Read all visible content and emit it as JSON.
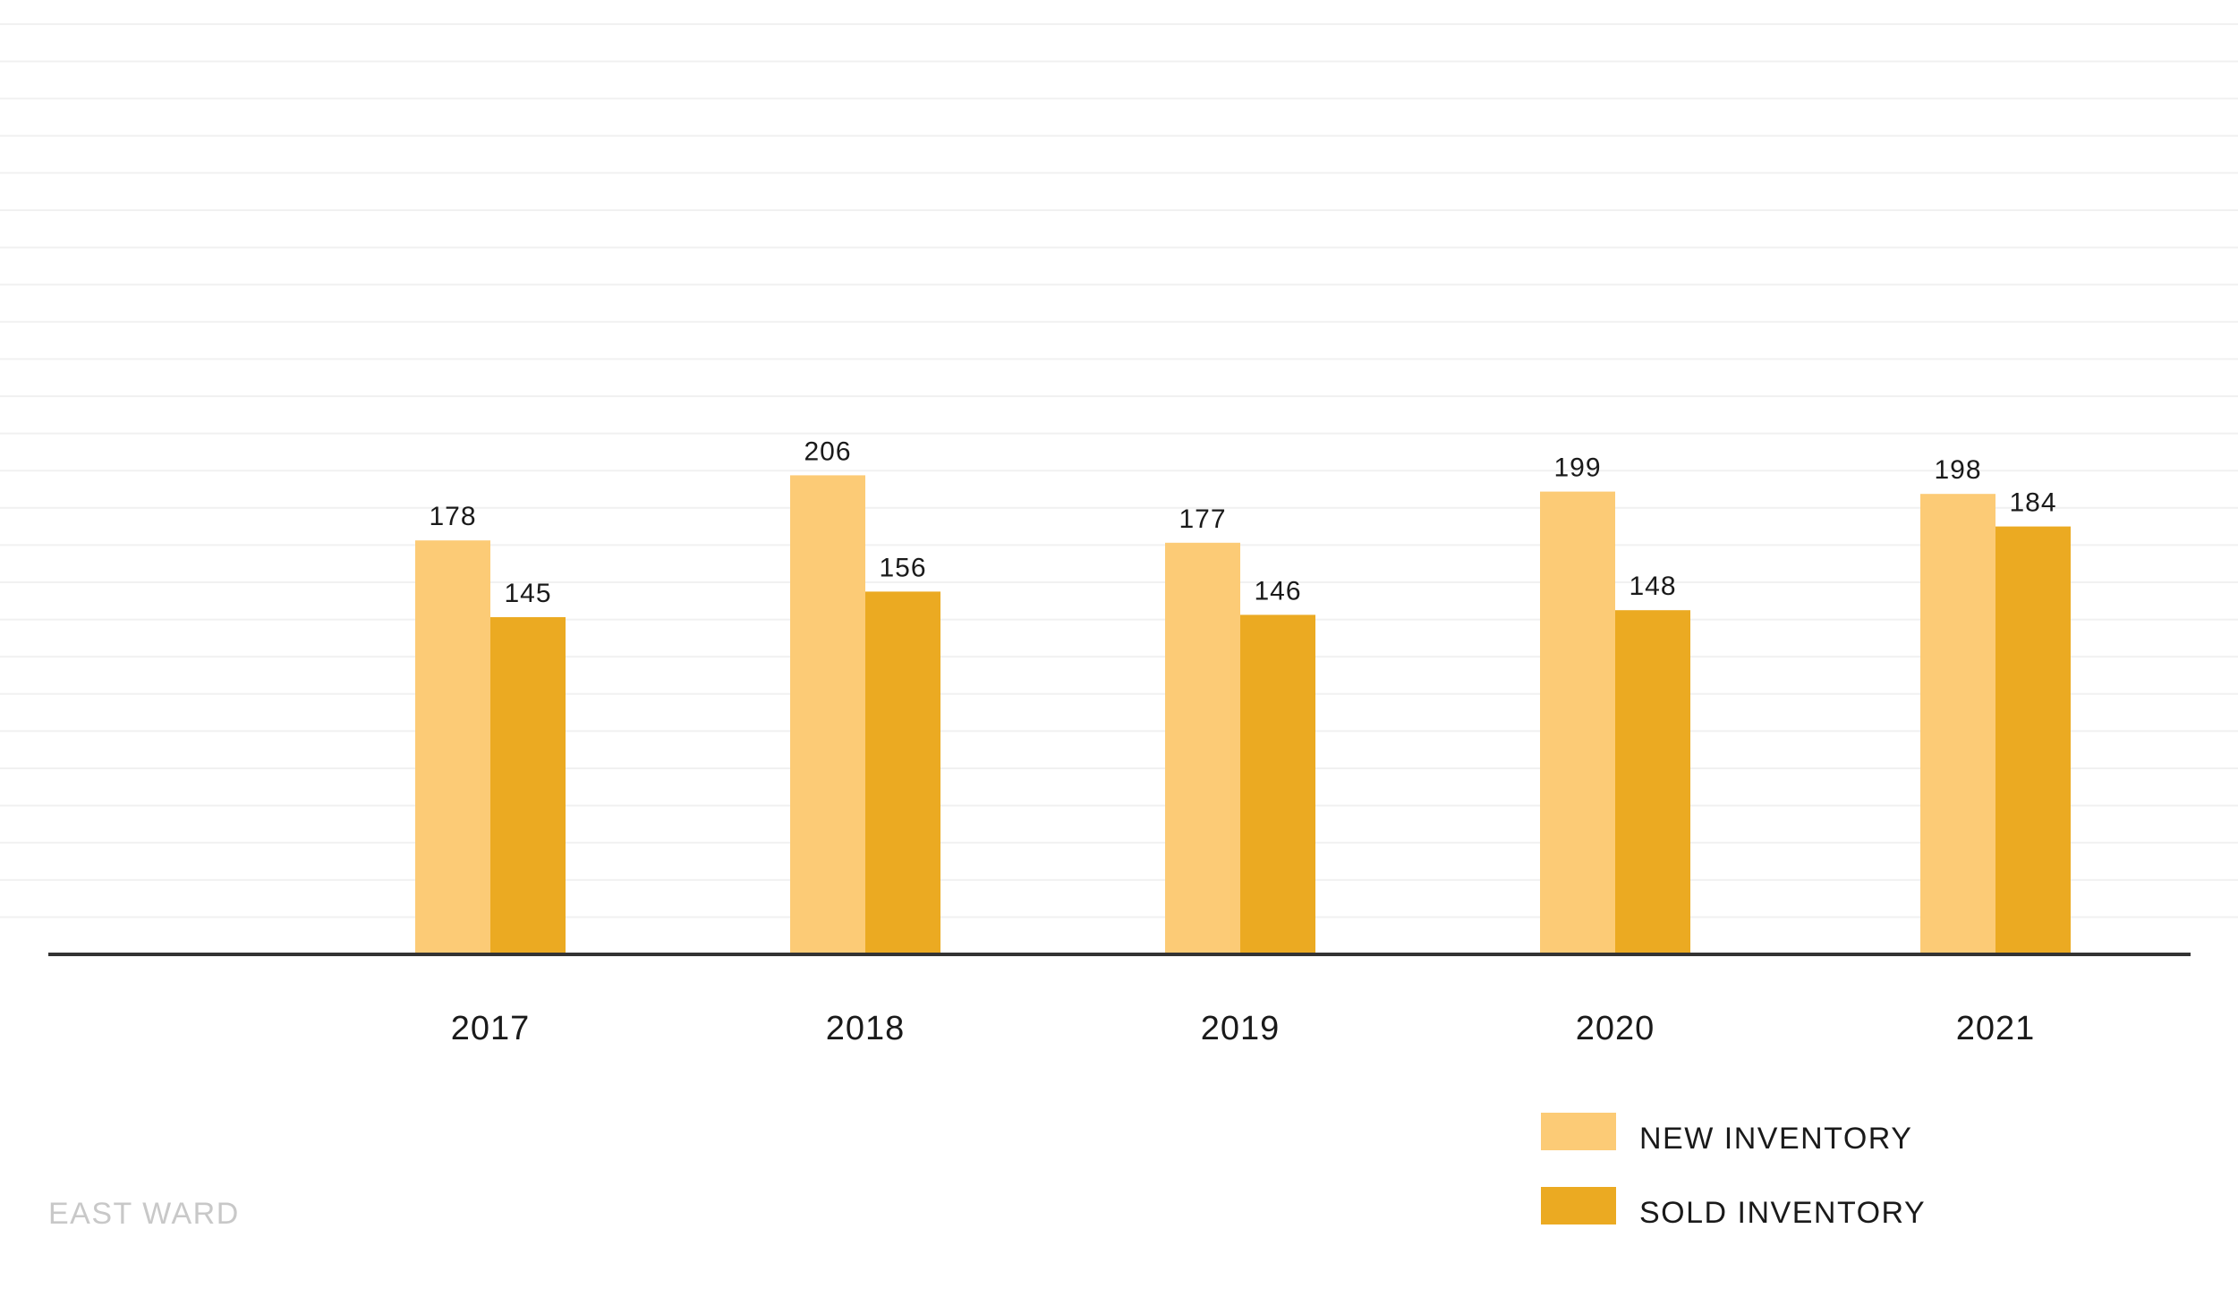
{
  "colors": {
    "new_inventory": "#FCCB76",
    "sold_inventory": "#EBAA22",
    "axis": "#333333",
    "gridline": "#f1f1f1",
    "footer_text": "#c8c8c8"
  },
  "footer": {
    "label": "EAST WARD"
  },
  "legend": {
    "items": [
      {
        "label": "NEW INVENTORY",
        "color": "#FCCB76"
      },
      {
        "label": "SOLD INVENTORY",
        "color": "#EBAA22"
      }
    ],
    "placement": "bottom-right"
  },
  "chart_data": {
    "type": "bar",
    "title": "",
    "xlabel": "",
    "ylabel": "",
    "categories": [
      "2017",
      "2018",
      "2019",
      "2020",
      "2021"
    ],
    "series": [
      {
        "name": "NEW INVENTORY",
        "values": [
          178,
          206,
          177,
          199,
          198
        ],
        "color": "#FCCB76"
      },
      {
        "name": "SOLD INVENTORY",
        "values": [
          145,
          156,
          146,
          148,
          184
        ],
        "color": "#EBAA22"
      }
    ],
    "ylim": [
      0,
      250
    ],
    "grid": true,
    "data_labels": true
  }
}
